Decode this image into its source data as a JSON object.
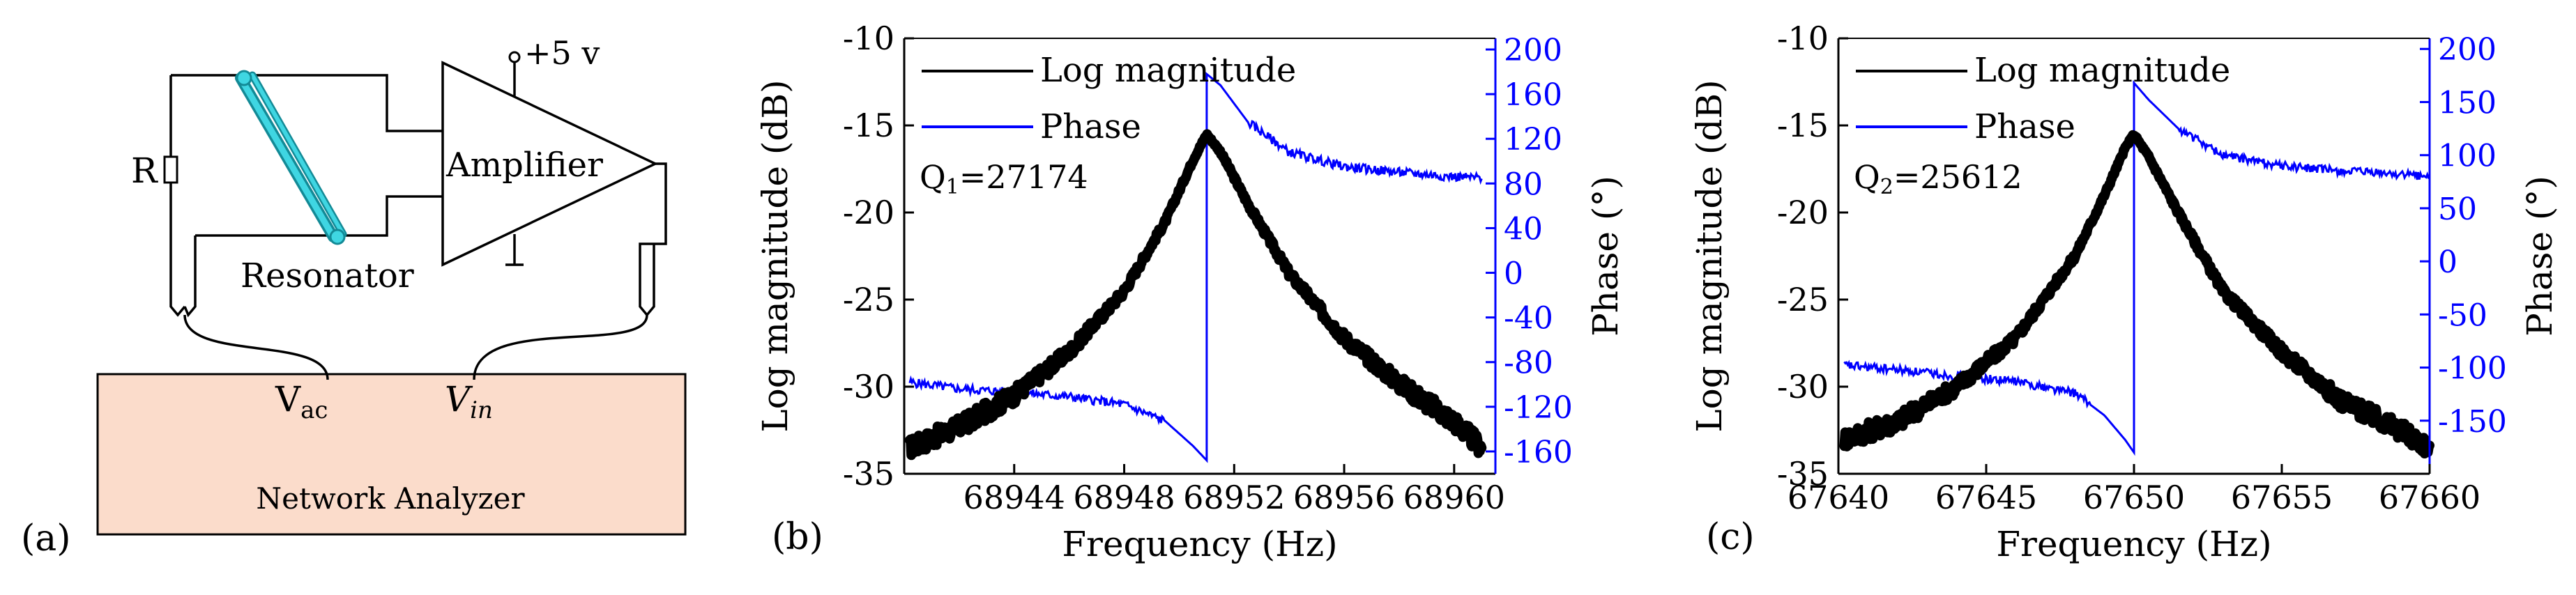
{
  "panel_a": {
    "label": "(a)",
    "resistor": "R",
    "resonator": "Resonator",
    "amplifier": "Amplifier",
    "supply": "+5 v",
    "vac_main": "V",
    "vac_sub": "ac",
    "vin_main": "V",
    "vin_sub": "in",
    "analyzer": "Network Analyzer"
  },
  "chart_data": [
    {
      "type": "line",
      "panel_label": "(b)",
      "xlabel": "Frequency (Hz)",
      "ylabel": "Log magnitude (dB)",
      "y2label": "Phase (°)",
      "xlim": [
        68940,
        68961.5
      ],
      "ylim": [
        -35,
        -10
      ],
      "y2lim": [
        -180,
        210
      ],
      "xticks": [
        68944,
        68948,
        68952,
        68956,
        68960
      ],
      "yticks": [
        -35,
        -30,
        -25,
        -20,
        -15,
        -10
      ],
      "y2ticks": [
        -160,
        -120,
        -80,
        -40,
        0,
        40,
        80,
        120,
        160,
        200
      ],
      "resonance_hz": 68951.0,
      "peak_db": -15.5,
      "q_label": "Q",
      "q_sub": "1",
      "q_value": "=27174",
      "legend": [
        "Log magnitude",
        "Phase"
      ],
      "series": [
        {
          "name": "Log magnitude",
          "color": "#000000",
          "axis": "left",
          "points": [
            [
              68940.2,
              -33.5
            ],
            [
              68942,
              -32.3
            ],
            [
              68944,
              -30.5
            ],
            [
              68946,
              -28.0
            ],
            [
              68948,
              -24.5
            ],
            [
              68949.5,
              -20.5
            ],
            [
              68950.5,
              -17.0
            ],
            [
              68951,
              -15.5
            ],
            [
              68951.5,
              -16.5
            ],
            [
              68952.5,
              -19.5
            ],
            [
              68954,
              -23.5
            ],
            [
              68956,
              -27.2
            ],
            [
              68958,
              -29.8
            ],
            [
              68960,
              -32.0
            ],
            [
              68961,
              -33.5
            ]
          ]
        },
        {
          "name": "Phase",
          "color": "#0000ff",
          "axis": "right",
          "points": [
            [
              68940.2,
              -98
            ],
            [
              68942,
              -104
            ],
            [
              68944,
              -107
            ],
            [
              68946,
              -111
            ],
            [
              68948,
              -118
            ],
            [
              68949.5,
              -133
            ],
            [
              68950.5,
              -155
            ],
            [
              68951,
              -168
            ],
            [
              68951,
              178
            ],
            [
              68951.5,
              168
            ],
            [
              68952.5,
              135
            ],
            [
              68954,
              108
            ],
            [
              68956,
              95
            ],
            [
              68958,
              90
            ],
            [
              68960,
              86
            ],
            [
              68961,
              85
            ]
          ]
        }
      ]
    },
    {
      "type": "line",
      "panel_label": "(c)",
      "xlabel": "Frequency (Hz)",
      "ylabel": "Log magnitude (dB)",
      "y2label": "Phase (°)",
      "xlim": [
        67640,
        67660
      ],
      "ylim": [
        -35,
        -10
      ],
      "y2lim": [
        -200,
        210
      ],
      "xticks": [
        67640,
        67645,
        67650,
        67655,
        67660
      ],
      "yticks": [
        -35,
        -30,
        -25,
        -20,
        -15,
        -10
      ],
      "y2ticks": [
        -150,
        -100,
        -50,
        0,
        50,
        100,
        150,
        200
      ],
      "resonance_hz": 67650.0,
      "peak_db": -15.5,
      "q_label": "Q",
      "q_sub": "2",
      "q_value": "=25612",
      "legend": [
        "Log magnitude",
        "Phase"
      ],
      "series": [
        {
          "name": "Log magnitude",
          "color": "#000000",
          "axis": "left",
          "points": [
            [
              67640.2,
              -33.0
            ],
            [
              67642,
              -32.0
            ],
            [
              67644,
              -30.0
            ],
            [
              67646,
              -27.2
            ],
            [
              67648,
              -22.5
            ],
            [
              67649,
              -19.0
            ],
            [
              67649.7,
              -16.3
            ],
            [
              67650,
              -15.5
            ],
            [
              67650.5,
              -16.8
            ],
            [
              67651.5,
              -20.0
            ],
            [
              67653,
              -24.5
            ],
            [
              67655,
              -28.0
            ],
            [
              67657,
              -30.8
            ],
            [
              67659,
              -32.5
            ],
            [
              67660,
              -33.5
            ]
          ]
        },
        {
          "name": "Phase",
          "color": "#0000ff",
          "axis": "right",
          "points": [
            [
              67640.2,
              -98
            ],
            [
              67642,
              -102
            ],
            [
              67644,
              -108
            ],
            [
              67646,
              -113
            ],
            [
              67648,
              -124
            ],
            [
              67649,
              -145
            ],
            [
              67649.7,
              -168
            ],
            [
              67650,
              -180
            ],
            [
              67650,
              168
            ],
            [
              67650.5,
              152
            ],
            [
              67651.5,
              125
            ],
            [
              67653,
              100
            ],
            [
              67655,
              90
            ],
            [
              67657,
              85
            ],
            [
              67659,
              82
            ],
            [
              67660,
              80
            ]
          ]
        }
      ]
    }
  ]
}
